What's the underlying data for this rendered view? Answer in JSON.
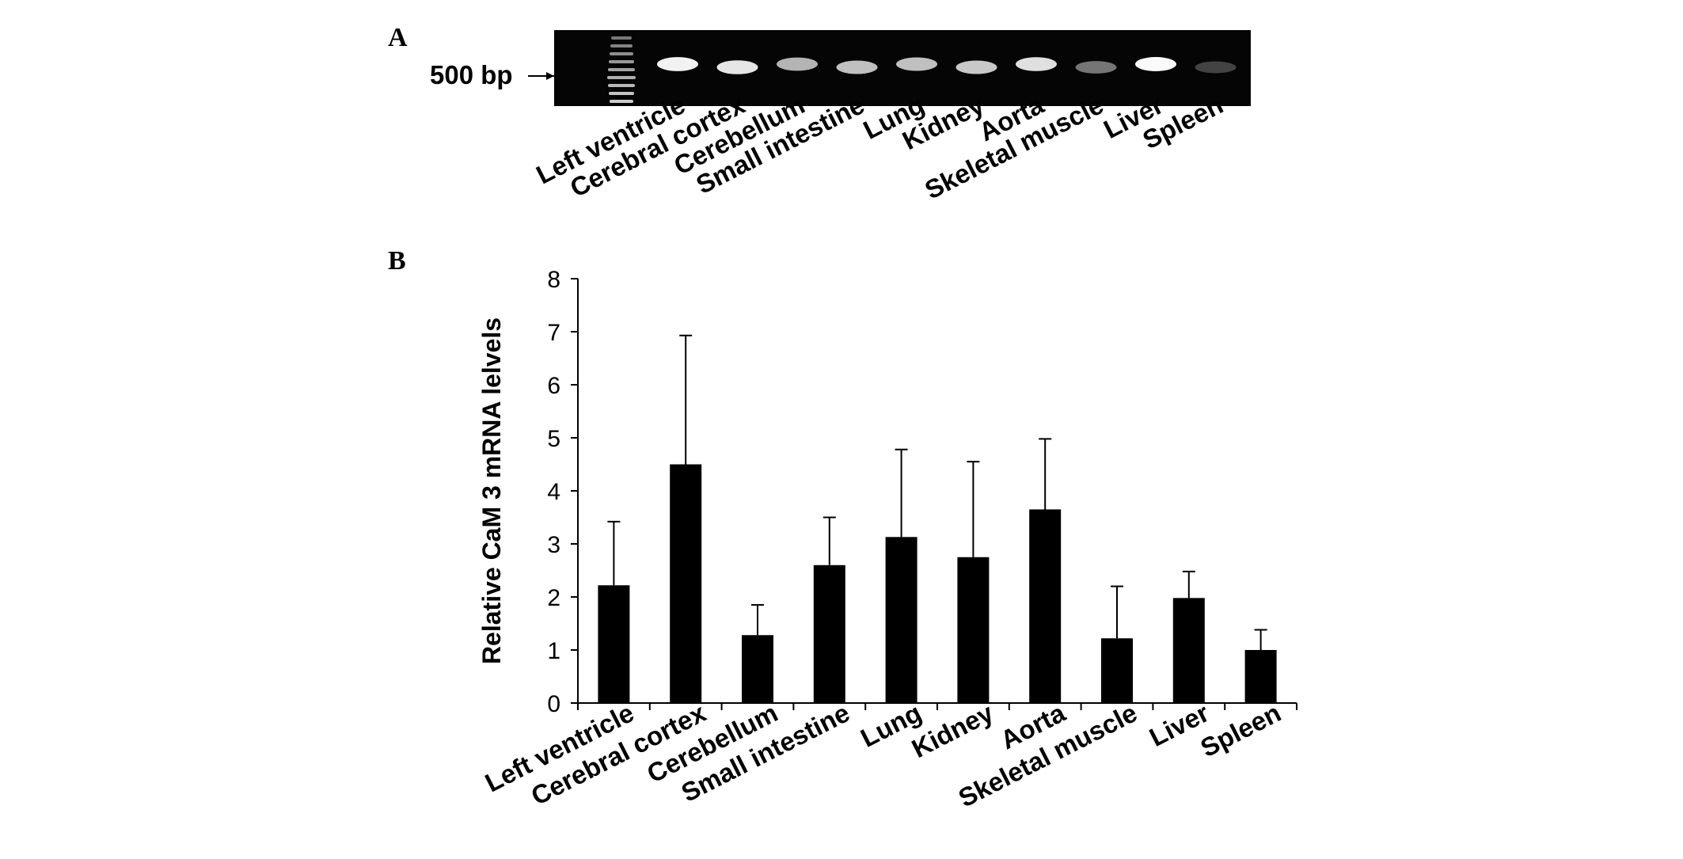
{
  "panels": {
    "a_label": "A",
    "b_label": "B"
  },
  "gel": {
    "marker_label": "500 bp",
    "lanes": [
      "Left ventricle",
      "Cerebral cortex",
      "Cerebellum",
      "Small intestine",
      "Lung",
      "Kidney",
      "Aorta",
      "Skeletal muscle",
      "Liver",
      "Spleen"
    ],
    "band_intensity": [
      0.95,
      0.9,
      0.7,
      0.75,
      0.75,
      0.78,
      0.88,
      0.45,
      0.98,
      0.25
    ],
    "colors": {
      "background": "#050505",
      "band": "#ffffff"
    }
  },
  "chart_data": {
    "type": "bar",
    "categories": [
      "Left ventricle",
      "Cerebral cortex",
      "Cerebellum",
      "Small intestine",
      "Lung",
      "Kidney",
      "Aorta",
      "Skeletal muscle",
      "Liver",
      "Spleen"
    ],
    "values": [
      2.22,
      4.5,
      1.28,
      2.6,
      3.13,
      2.75,
      3.65,
      1.22,
      1.98,
      1.0
    ],
    "error_upper": [
      3.42,
      6.93,
      1.85,
      3.5,
      4.78,
      4.55,
      4.98,
      2.2,
      2.48,
      1.38
    ],
    "ylabel": "Relative CaM 3 mRNA lelvels",
    "xlabel": "",
    "ylim": [
      0,
      8
    ],
    "yticks": [
      "0",
      "1",
      "2",
      "3",
      "4",
      "5",
      "6",
      "7",
      "8"
    ],
    "grid": false,
    "bar_color": "#000000"
  }
}
